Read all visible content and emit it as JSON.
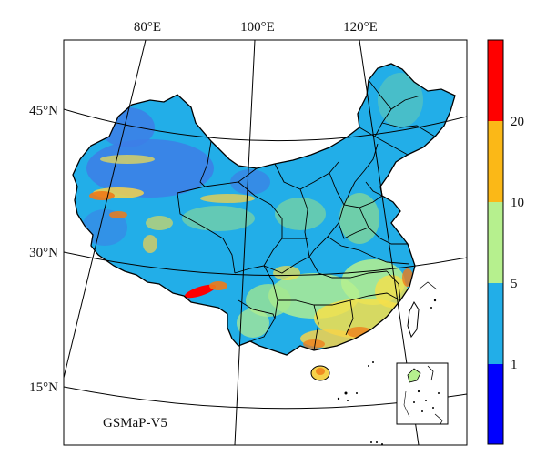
{
  "map": {
    "product_label": "GSMaP-V5",
    "longitude_labels": [
      "80°E",
      "100°E",
      "120°E"
    ],
    "latitude_labels": [
      "45°N",
      "30°N",
      "15°N"
    ],
    "region": "China",
    "inset": "South China Sea islands"
  },
  "colorbar": {
    "tick_labels": [
      "1",
      "5",
      "10",
      "20"
    ],
    "colors": [
      "#0000ff",
      "#22aee8",
      "#b6f08e",
      "#fbb817",
      "#ff0000"
    ]
  }
}
